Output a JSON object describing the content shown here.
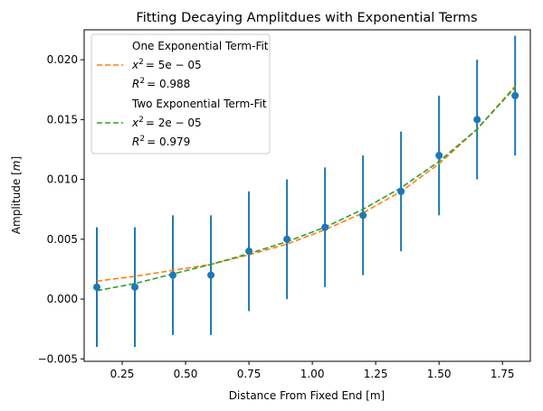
{
  "chart_data": {
    "type": "scatter",
    "title": "Fitting Decaying Amplitdues with Exponential Terms",
    "xlabel": "Distance From Fixed End [m]",
    "ylabel": "Amplitude  [m]",
    "xlim": [
      0.1,
      1.86
    ],
    "ylim": [
      -0.0052,
      0.0225
    ],
    "xticks": [
      0.25,
      0.5,
      0.75,
      1.0,
      1.25,
      1.5,
      1.75
    ],
    "xtick_labels": [
      "0.25",
      "0.50",
      "0.75",
      "1.00",
      "1.25",
      "1.50",
      "1.75"
    ],
    "yticks": [
      -0.005,
      0.0,
      0.005,
      0.01,
      0.015,
      0.02
    ],
    "ytick_labels": [
      "−0.005",
      "0.000",
      "0.005",
      "0.010",
      "0.015",
      "0.020"
    ],
    "grid": false,
    "legend_position": "top-left",
    "series": [
      {
        "kind": "errorbar",
        "color": "#1f77b4",
        "x": [
          0.15,
          0.3,
          0.45,
          0.6,
          0.75,
          0.9,
          1.05,
          1.2,
          1.35,
          1.5,
          1.65,
          1.8
        ],
        "y": [
          0.001,
          0.001,
          0.002,
          0.002,
          0.004,
          0.005,
          0.006,
          0.007,
          0.009,
          0.012,
          0.015,
          0.017
        ],
        "yerr": 0.005
      },
      {
        "kind": "line",
        "color": "#ff7f0e",
        "dashed": true,
        "x": [
          0.15,
          0.3,
          0.45,
          0.6,
          0.75,
          0.9,
          1.05,
          1.2,
          1.35,
          1.5,
          1.65,
          1.8
        ],
        "y": [
          0.0015,
          0.0019,
          0.0024,
          0.0029,
          0.0037,
          0.0046,
          0.0058,
          0.0072,
          0.009,
          0.0113,
          0.0142,
          0.0178
        ]
      },
      {
        "kind": "line",
        "color": "#2ca02c",
        "dashed": true,
        "x": [
          0.15,
          0.3,
          0.45,
          0.6,
          0.75,
          0.9,
          1.05,
          1.2,
          1.35,
          1.5,
          1.65,
          1.8
        ],
        "y": [
          0.0007,
          0.0013,
          0.0021,
          0.0029,
          0.0038,
          0.0048,
          0.006,
          0.0075,
          0.0093,
          0.0115,
          0.0142,
          0.0177
        ]
      }
    ],
    "legend": [
      {
        "marker": "none",
        "label": "One Exponential Term-Fit"
      },
      {
        "marker": "orange-dash",
        "label_var": "x",
        "label_sup": "2",
        "label_rest": "= 5e − 05"
      },
      {
        "marker": "none",
        "label_var": "R",
        "label_sup": "2",
        "label_rest": "= 0.988"
      },
      {
        "marker": "none",
        "label": "Two Exponential Term-Fit"
      },
      {
        "marker": "green-dash",
        "label_var": "x",
        "label_sup": "2",
        "label_rest": "= 2e − 05"
      },
      {
        "marker": "none",
        "label_var": "R",
        "label_sup": "2",
        "label_rest": "= 0.979"
      }
    ]
  }
}
